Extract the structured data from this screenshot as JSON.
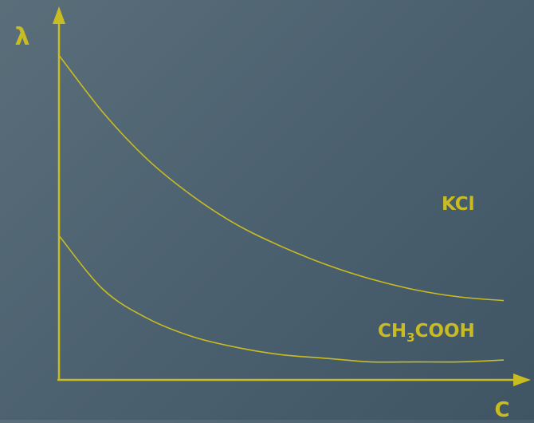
{
  "colors": {
    "ink": "#c8bc22",
    "background_top": "#5a6e7a",
    "background_bottom": "#3f5564"
  },
  "chart_data": {
    "type": "line",
    "xlabel": "C",
    "ylabel": "λ",
    "xlim": [
      0,
      1
    ],
    "ylim": [
      0,
      1
    ],
    "ticks": "none",
    "grid": false,
    "series": [
      {
        "name": "KCl",
        "x": [
          0,
          0.1,
          0.2,
          0.3,
          0.4,
          0.5,
          0.6,
          0.7,
          0.8,
          0.9,
          1.0
        ],
        "y": [
          0.9,
          0.74,
          0.61,
          0.51,
          0.43,
          0.37,
          0.32,
          0.28,
          0.25,
          0.23,
          0.22
        ]
      },
      {
        "name_main": "CH",
        "name_sub": "3",
        "name_tail": "COOH",
        "x": [
          0,
          0.1,
          0.2,
          0.3,
          0.4,
          0.5,
          0.6,
          0.7,
          0.8,
          0.9,
          1.0
        ],
        "y": [
          0.4,
          0.25,
          0.17,
          0.12,
          0.09,
          0.07,
          0.06,
          0.05,
          0.05,
          0.05,
          0.055
        ]
      }
    ]
  }
}
